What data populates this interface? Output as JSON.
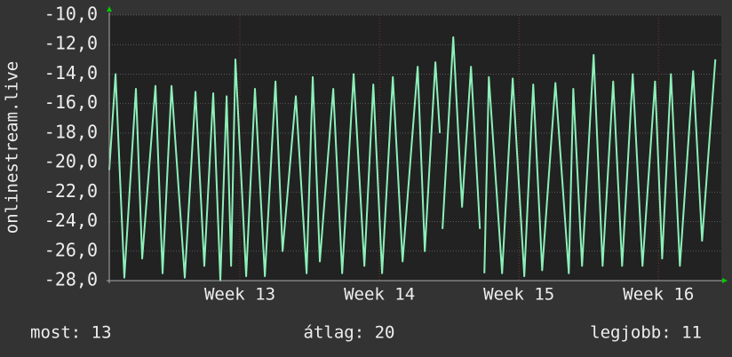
{
  "chart_data": {
    "type": "line",
    "ylabel": "onlinestream.live",
    "x": [
      12.064,
      12.109,
      12.172,
      12.255,
      12.3,
      12.395,
      12.446,
      12.51,
      12.605,
      12.682,
      12.745,
      12.809,
      12.86,
      12.905,
      12.937,
      12.968,
      13.045,
      13.108,
      13.179,
      13.255,
      13.306,
      13.401,
      13.478,
      13.522,
      13.573,
      13.669,
      13.733,
      13.815,
      13.892,
      13.956,
      14.019,
      14.096,
      14.166,
      14.274,
      14.325,
      14.401,
      14.433,
      14.44,
      14.452,
      14.529,
      14.592,
      14.656,
      14.72,
      14.735,
      14.752,
      14.784,
      14.879,
      14.955,
      15.038,
      15.102,
      15.166,
      15.261,
      15.357,
      15.389,
      15.452,
      15.535,
      15.599,
      15.675,
      15.739,
      15.815,
      15.885,
      15.975,
      16.026,
      16.089,
      16.153,
      16.248,
      16.312,
      16.407
    ],
    "series": [
      {
        "name": "onlinestream.live",
        "color": "#8cf0b8",
        "values": [
          -20.5,
          -14.0,
          -27.8,
          -15.0,
          -26.5,
          -14.8,
          -27.5,
          -14.8,
          -27.8,
          -15.2,
          -27.0,
          -15.3,
          -28.0,
          -15.5,
          -27.0,
          -13.0,
          -27.7,
          -15.0,
          -27.7,
          -14.5,
          -26.0,
          -15.5,
          -27.5,
          -14.2,
          -26.7,
          -15.0,
          -27.5,
          -14.0,
          -27.0,
          -14.7,
          -27.5,
          -14.2,
          -26.7,
          -13.5,
          -26.0,
          -13.2,
          -18.0,
          null,
          -24.5,
          -11.5,
          -23.0,
          -13.5,
          -24.5,
          null,
          -27.5,
          -14.2,
          -27.5,
          -14.3,
          -27.7,
          -14.7,
          -27.3,
          -14.6,
          -27.5,
          -15.0,
          -27.0,
          -12.7,
          -27.0,
          -14.5,
          -27.0,
          -14.0,
          -27.0,
          -14.5,
          -26.5,
          -14.0,
          -27.0,
          -13.8,
          -25.3,
          -13.0
        ]
      }
    ],
    "xlim": [
      12.064,
      16.45
    ],
    "xticks": [
      {
        "value": 13,
        "label": "Week 13"
      },
      {
        "value": 14,
        "label": "Week 14"
      },
      {
        "value": 15,
        "label": "Week 15"
      },
      {
        "value": 16,
        "label": "Week 16"
      }
    ],
    "ylim": [
      -28,
      -10
    ],
    "yticks": [
      {
        "value": -28,
        "label": "-28,0"
      },
      {
        "value": -26,
        "label": "-26,0"
      },
      {
        "value": -24,
        "label": "-24,0"
      },
      {
        "value": -22,
        "label": "-22,0"
      },
      {
        "value": -20,
        "label": "-20,0"
      },
      {
        "value": -18,
        "label": "-18,0"
      },
      {
        "value": -16,
        "label": "-16,0"
      },
      {
        "value": -14,
        "label": "-14,0"
      },
      {
        "value": -12,
        "label": "-12,0"
      },
      {
        "value": -10,
        "label": "-10,0"
      }
    ],
    "grid": true,
    "footer": [
      "most: 13",
      "átlag: 20",
      "legjobb: 11"
    ]
  }
}
